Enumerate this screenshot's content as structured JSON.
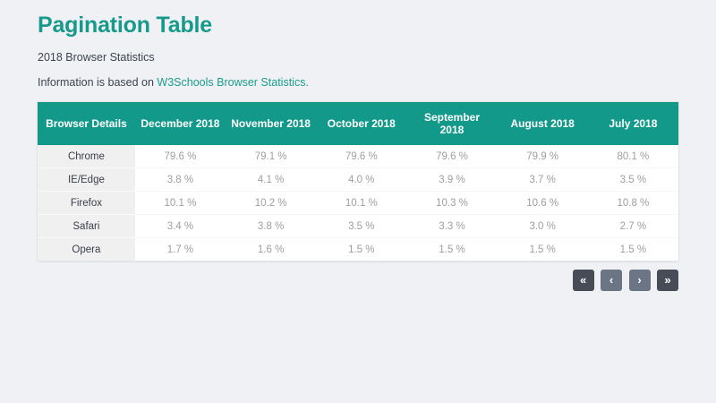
{
  "page": {
    "title": "Pagination Table",
    "subtitle": "2018 Browser Statistics",
    "info_prefix": "Information is based on ",
    "info_link_text": "W3Schools Browser Statistics."
  },
  "table": {
    "columns": [
      "Browser Details",
      "December 2018",
      "November 2018",
      "October 2018",
      "September 2018",
      "August 2018",
      "July 2018"
    ],
    "rows": [
      {
        "browser": "Chrome",
        "values": [
          "79.6 %",
          "79.1 %",
          "79.6 %",
          "79.6 %",
          "79.9 %",
          "80.1 %"
        ]
      },
      {
        "browser": "IE/Edge",
        "values": [
          "3.8 %",
          "4.1 %",
          "4.0 %",
          "3.9 %",
          "3.7 %",
          "3.5 %"
        ]
      },
      {
        "browser": "Firefox",
        "values": [
          "10.1 %",
          "10.2 %",
          "10.1 %",
          "10.3 %",
          "10.6 %",
          "10.8 %"
        ]
      },
      {
        "browser": "Safari",
        "values": [
          "3.4 %",
          "3.8 %",
          "3.5 %",
          "3.3 %",
          "3.0 %",
          "2.7 %"
        ]
      },
      {
        "browser": "Opera",
        "values": [
          "1.7 %",
          "1.6 %",
          "1.5 %",
          "1.5 %",
          "1.5 %",
          "1.5 %"
        ]
      }
    ]
  },
  "pagination": {
    "first_label": "«",
    "prev_label": "‹",
    "next_label": "›",
    "last_label": "»"
  },
  "colors": {
    "accent_teal": "#13998a",
    "page_background": "#eff1f5",
    "first_column_background": "#f0f0f0",
    "value_text": "#9e9e9e",
    "dark_button": "#464d57",
    "light_button": "#6c7583"
  }
}
